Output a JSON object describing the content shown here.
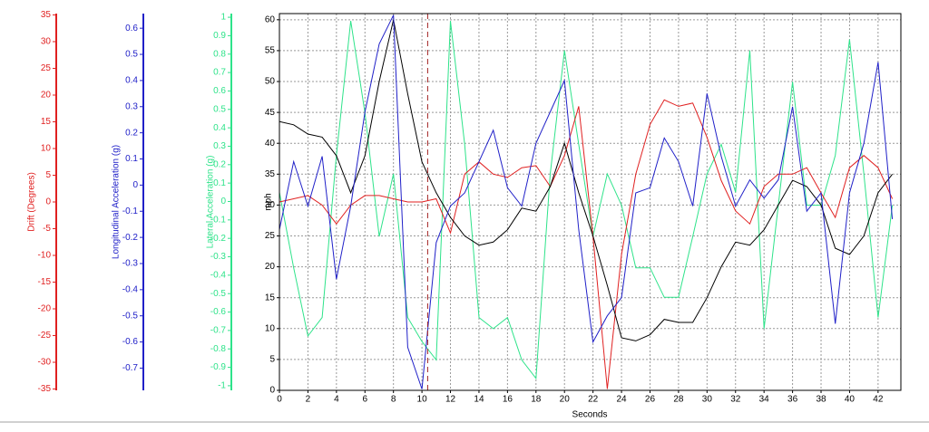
{
  "chart_data": {
    "type": "line",
    "xlabel": "Seconds",
    "ylabel": "mph",
    "x": [
      0,
      1,
      2,
      3,
      4,
      5,
      6,
      7,
      8,
      9,
      10,
      11,
      12,
      13,
      14,
      15,
      16,
      17,
      18,
      19,
      20,
      21,
      22,
      23,
      24,
      25,
      26,
      27,
      28,
      29,
      30,
      31,
      32,
      33,
      34,
      35,
      36,
      37,
      38,
      39,
      40,
      41,
      42,
      43
    ],
    "xlim": [
      0,
      43.6
    ],
    "xticks": [
      0,
      2,
      4,
      6,
      8,
      10,
      12,
      14,
      16,
      18,
      20,
      22,
      24,
      26,
      28,
      30,
      32,
      34,
      36,
      38,
      40,
      42
    ],
    "ylim": [
      0,
      61
    ],
    "yticks": [
      0,
      5,
      10,
      15,
      20,
      25,
      30,
      35,
      40,
      45,
      50,
      55,
      60
    ],
    "grid": true,
    "cursor_x": 10.4,
    "extra_axes": [
      {
        "label": "Drift (Degrees)",
        "color": "#e02020",
        "ylim": [
          -35.25,
          35.25
        ],
        "yticks": [
          35,
          30,
          25,
          20,
          15,
          10,
          5,
          0,
          -5,
          -10,
          -15,
          -20,
          -25,
          -30,
          -35
        ]
      },
      {
        "label": "Longitudinal Acceleration (g)",
        "color": "#2020c8",
        "ylim": [
          -0.785,
          0.656
        ],
        "yticks": [
          0.6,
          0.5,
          0.4,
          0.3,
          0.2,
          0.1,
          0,
          -0.1,
          -0.2,
          -0.3,
          -0.4,
          -0.5,
          -0.6,
          -0.7
        ]
      },
      {
        "label": "Lateral Acceleration (g)",
        "color": "#2ee38a",
        "ylim": [
          -1.025,
          1.02
        ],
        "yticks": [
          1,
          0.9,
          0.8,
          0.7,
          0.6,
          0.5,
          0.4,
          0.3,
          0.2,
          0.1,
          0,
          -0.1,
          -0.2,
          -0.3,
          -0.4,
          -0.5,
          -0.6,
          -0.7,
          -0.8,
          -0.9,
          -1
        ]
      }
    ],
    "series": [
      {
        "color": "#2ee38a",
        "axis": 2,
        "values": [
          0.05,
          -0.36,
          -0.73,
          -0.63,
          0.25,
          0.98,
          0.48,
          -0.19,
          0.15,
          -0.63,
          -0.76,
          -0.86,
          0.98,
          0.31,
          -0.63,
          -0.69,
          -0.63,
          -0.86,
          -0.96,
          0.15,
          0.82,
          0.31,
          -0.19,
          0.15,
          -0.02,
          -0.36,
          -0.36,
          -0.52,
          -0.52,
          -0.19,
          0.15,
          0.31,
          0.05,
          0.82,
          -0.69,
          -0.02,
          0.65,
          -0.02,
          -0.02,
          0.25,
          0.88,
          0.15,
          -0.63,
          -0.02
        ]
      },
      {
        "color": "#e02020",
        "axis": 0,
        "values": [
          0,
          0.6,
          1.2,
          -0.6,
          -4.1,
          -0.6,
          1.2,
          1.2,
          0.6,
          0,
          0,
          0.6,
          -5.8,
          5.2,
          7.5,
          5.2,
          4.6,
          6.4,
          6.8,
          2.9,
          8.7,
          17.9,
          -6.4,
          -35,
          -9.8,
          5.2,
          14.5,
          19.1,
          17.9,
          18.5,
          12.1,
          4.0,
          -1.7,
          -4.1,
          2.9,
          5.2,
          5.2,
          6.4,
          1.7,
          -2.9,
          6.4,
          8.7,
          6.4,
          0.6
        ]
      },
      {
        "color": "#000000",
        "axis": "mph",
        "values": [
          43.5,
          43,
          41.5,
          41,
          38,
          32,
          38,
          50,
          60,
          48,
          37,
          32,
          28,
          25,
          23.5,
          24,
          26,
          29.5,
          29,
          33,
          40,
          32,
          25,
          17,
          8.5,
          8,
          9,
          11.5,
          11,
          11,
          15,
          20,
          24,
          23.5,
          26,
          30,
          34,
          33,
          30,
          23,
          22,
          25,
          32,
          35
        ]
      },
      {
        "color": "#2020c8",
        "axis": 1,
        "values": [
          -0.17,
          0.09,
          -0.08,
          0.11,
          -0.36,
          -0.08,
          0.28,
          0.54,
          0.65,
          -0.62,
          -0.78,
          -0.22,
          -0.08,
          -0.03,
          0.09,
          0.21,
          -0.01,
          -0.08,
          0.16,
          0.28,
          0.4,
          -0.17,
          -0.6,
          -0.5,
          -0.43,
          -0.03,
          -0.01,
          0.18,
          0.09,
          -0.08,
          0.35,
          0.11,
          -0.08,
          0.02,
          -0.05,
          0.02,
          0.3,
          -0.1,
          -0.03,
          -0.53,
          -0.03,
          0.16,
          0.47,
          -0.13
        ]
      }
    ]
  }
}
